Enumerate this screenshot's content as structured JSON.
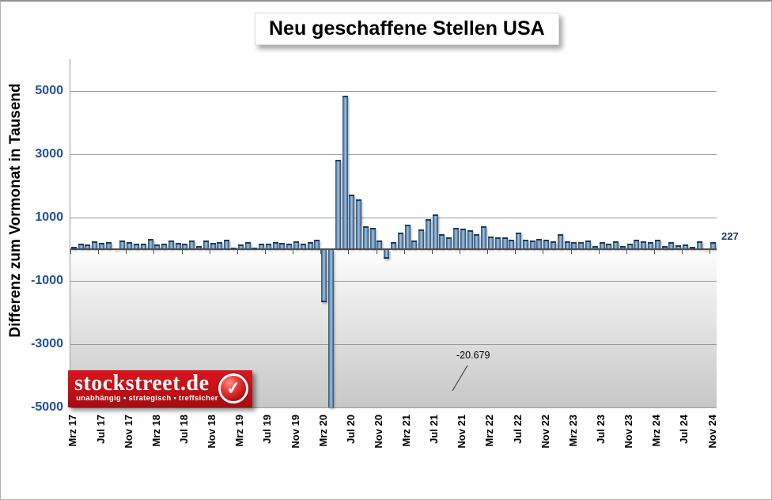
{
  "chart": {
    "title": "Neu geschaffene Stellen USA",
    "y_axis_title": "Differenz zum Vormonat in Tausend",
    "latest_value_label": "227",
    "min_annotation_label": "-20.679"
  },
  "logo": {
    "brand": "stockstreet.de",
    "tagline": "unabhängig • strategisch • treffsicher",
    "check_icon": "✓",
    "background_color": "#c01016"
  },
  "chart_data": {
    "type": "bar",
    "title": "Neu geschaffene Stellen USA",
    "xlabel": "",
    "ylabel": "Differenz zum Vormonat in Tausend",
    "frequency": "monthly",
    "x_start": "Mrz 17",
    "x_end": "Nov 24",
    "x_tick_labels": [
      "Mrz 17",
      "Jul 17",
      "Nov 17",
      "Mrz 18",
      "Jul 18",
      "Nov 18",
      "Mrz 19",
      "Jul 19",
      "Nov 19",
      "Mrz 20",
      "Jul 20",
      "Nov 20",
      "Mrz 21",
      "Jul 21",
      "Nov 21",
      "Mrz 22",
      "Jul 22",
      "Nov 22",
      "Mrz 23",
      "Jul 23",
      "Nov 23",
      "Mrz 24",
      "Jul 24",
      "Nov 24"
    ],
    "x_tick_every_n_months": 4,
    "y_ticks": [
      5000,
      3000,
      1000,
      -1000,
      -3000,
      -5000
    ],
    "ylim_displayed": [
      -5000,
      6000
    ],
    "grid": true,
    "legend": false,
    "clipped_minimum_value": -20679,
    "clipped_minimum_month": "Apr 20",
    "latest_value": 227,
    "latest_month": "Nov 24",
    "bar_color_center": "#a3c4e6",
    "bar_color_edge": "#2d5277",
    "series": [
      {
        "name": "Neu geschaffene Stellen USA",
        "values": [
          73,
          175,
          155,
          239,
          189,
          221,
          14,
          271,
          216,
          175,
          176,
          324,
          155,
          175,
          268,
          208,
          178,
          282,
          108,
          277,
          196,
          227,
          312,
          56,
          153,
          216,
          62,
          178,
          166,
          219,
          208,
          185,
          261,
          184,
          214,
          289,
          -1683,
          -20679,
          2833,
          4846,
          1726,
          1583,
          716,
          680,
          264,
          -306,
          233,
          536,
          785,
          269,
          614,
          962,
          1091,
          483,
          379,
          677,
          647,
          588,
          467,
          714,
          398,
          368,
          386,
          293,
          537,
          292,
          269,
          324,
          290,
          239,
          472,
          248,
          217,
          217,
          281,
          105,
          236,
          165,
          262,
          105,
          182,
          290,
          256,
          236,
          310,
          108,
          216,
          118,
          144,
          78,
          255,
          36,
          227
        ]
      }
    ]
  }
}
